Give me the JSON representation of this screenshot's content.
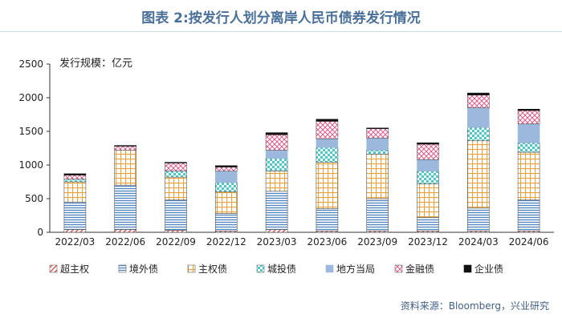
{
  "title": "图表 2:按发行人划分离岸人民币债券发行情况",
  "source": "资料来源：Bloomberg，兴业研究",
  "chart_data": {
    "type": "bar",
    "stacked": true,
    "unit_label": "发行规模：亿元",
    "categories": [
      "2022/03",
      "2022/06",
      "2022/09",
      "2022/12",
      "2023/03",
      "2023/06",
      "2023/09",
      "2023/12",
      "2024/03",
      "2024/06"
    ],
    "ylim": [
      0,
      2500
    ],
    "yticks": [
      0,
      500,
      1000,
      1500,
      2000,
      2500
    ],
    "grid": false,
    "legend_position": "bottom",
    "series": [
      {
        "name": "超主权",
        "color": "#d9534f",
        "pattern": "diag",
        "values": [
          40,
          40,
          30,
          20,
          40,
          20,
          20,
          20,
          20,
          20
        ]
      },
      {
        "name": "境外债",
        "color": "#4f81bd",
        "pattern": "hlines",
        "values": [
          410,
          660,
          450,
          260,
          570,
          330,
          480,
          200,
          340,
          460
        ]
      },
      {
        "name": "主权债",
        "color": "#e6a23c",
        "pattern": "grid",
        "values": [
          300,
          520,
          340,
          320,
          300,
          690,
          660,
          500,
          1000,
          710
        ]
      },
      {
        "name": "城投债",
        "color": "#4ec9c9",
        "pattern": "checker",
        "values": [
          40,
          0,
          90,
          140,
          190,
          220,
          60,
          190,
          200,
          140
        ]
      },
      {
        "name": "地方当局",
        "color": "#9db8dd",
        "pattern": "solid",
        "values": [
          0,
          0,
          0,
          170,
          120,
          130,
          180,
          170,
          290,
          280
        ]
      },
      {
        "name": "金融债",
        "color": "#e05c8a",
        "pattern": "dots",
        "values": [
          60,
          60,
          120,
          60,
          230,
          260,
          140,
          230,
          190,
          200
        ]
      },
      {
        "name": "企业债",
        "color": "#111111",
        "pattern": "solid",
        "values": [
          20,
          10,
          10,
          20,
          30,
          30,
          10,
          20,
          30,
          20
        ]
      }
    ]
  }
}
